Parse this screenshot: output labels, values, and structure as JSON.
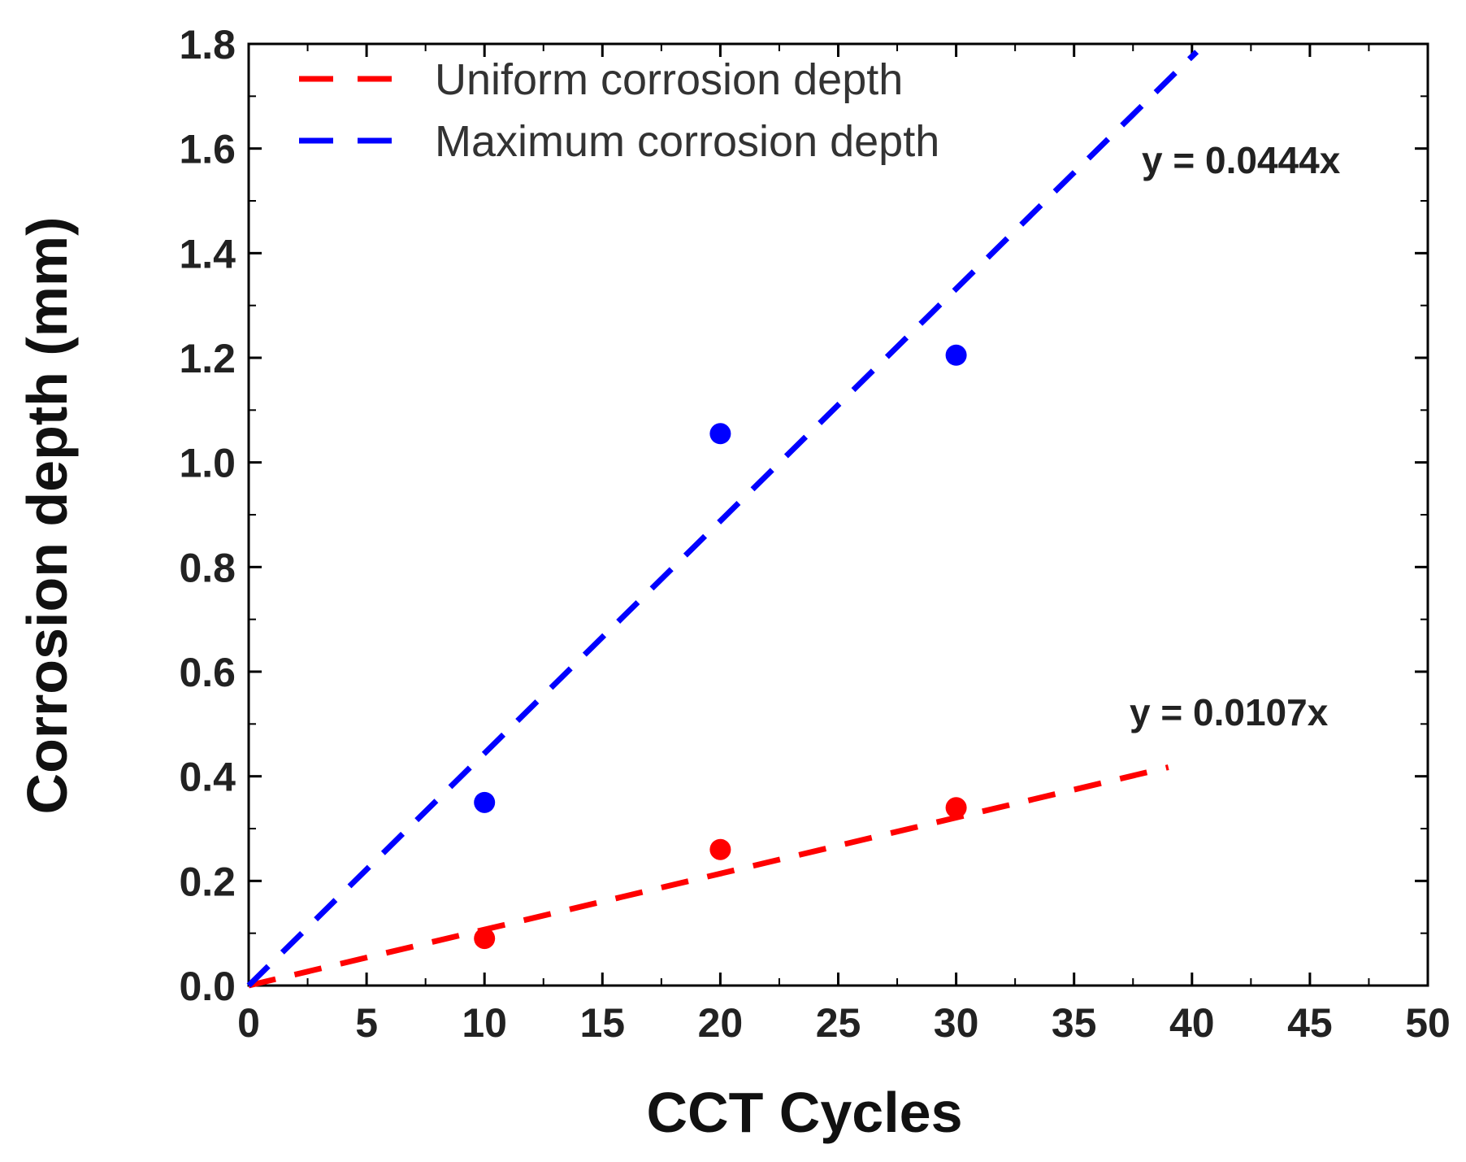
{
  "chart_data": {
    "type": "scatter",
    "title": "",
    "xlabel": "CCT Cycles",
    "ylabel": "Corrosion depth (mm)",
    "xlim": [
      0,
      50
    ],
    "ylim": [
      0,
      1.8
    ],
    "x_ticks": [
      0,
      5,
      10,
      15,
      20,
      25,
      30,
      35,
      40,
      45,
      50
    ],
    "x_tick_labels": [
      "0",
      "5",
      "10",
      "15",
      "20",
      "25",
      "30",
      "35",
      "40",
      "45",
      "50"
    ],
    "y_ticks": [
      0,
      0.2,
      0.4,
      0.6,
      0.8,
      1.0,
      1.2,
      1.4,
      1.6,
      1.8
    ],
    "y_tick_labels": [
      "0.0",
      "0.2",
      "0.4",
      "0.6",
      "0.8",
      "1.0",
      "1.2",
      "1.4",
      "1.6",
      "1.8"
    ],
    "grid": false,
    "legend_position": "top-left",
    "series": [
      {
        "name": "Uniform corrosion depth",
        "color": "#ff0000",
        "points": [
          {
            "x": 10,
            "y": 0.09
          },
          {
            "x": 20,
            "y": 0.26
          },
          {
            "x": 30,
            "y": 0.34
          }
        ],
        "fit": {
          "equation": "y = 0.0107x",
          "slope": 0.0107,
          "x_range": [
            0,
            39
          ]
        }
      },
      {
        "name": "Maximum corrosion depth",
        "color": "#0000ff",
        "points": [
          {
            "x": 10,
            "y": 0.35
          },
          {
            "x": 20,
            "y": 1.055
          },
          {
            "x": 30,
            "y": 1.205
          }
        ],
        "fit": {
          "equation": "y = 0.0444x",
          "slope": 0.0444,
          "x_range": [
            0,
            40.2
          ]
        }
      }
    ]
  }
}
